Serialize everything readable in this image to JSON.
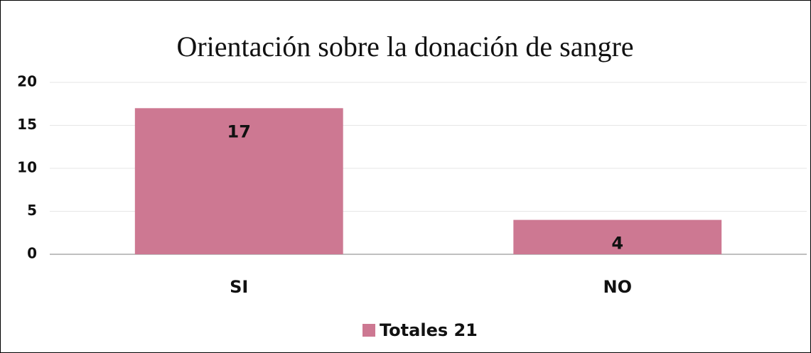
{
  "chart_data": {
    "type": "bar",
    "title": "Orientación sobre la donación de sangre",
    "categories": [
      "SI",
      "NO"
    ],
    "series": [
      {
        "name": "Totales 21",
        "color": "#cd7892",
        "values": [
          17,
          4
        ]
      }
    ],
    "ylim": [
      0,
      20
    ],
    "yticks": [
      0,
      5,
      10,
      15,
      20
    ],
    "grid": true,
    "legend": "bottom"
  }
}
